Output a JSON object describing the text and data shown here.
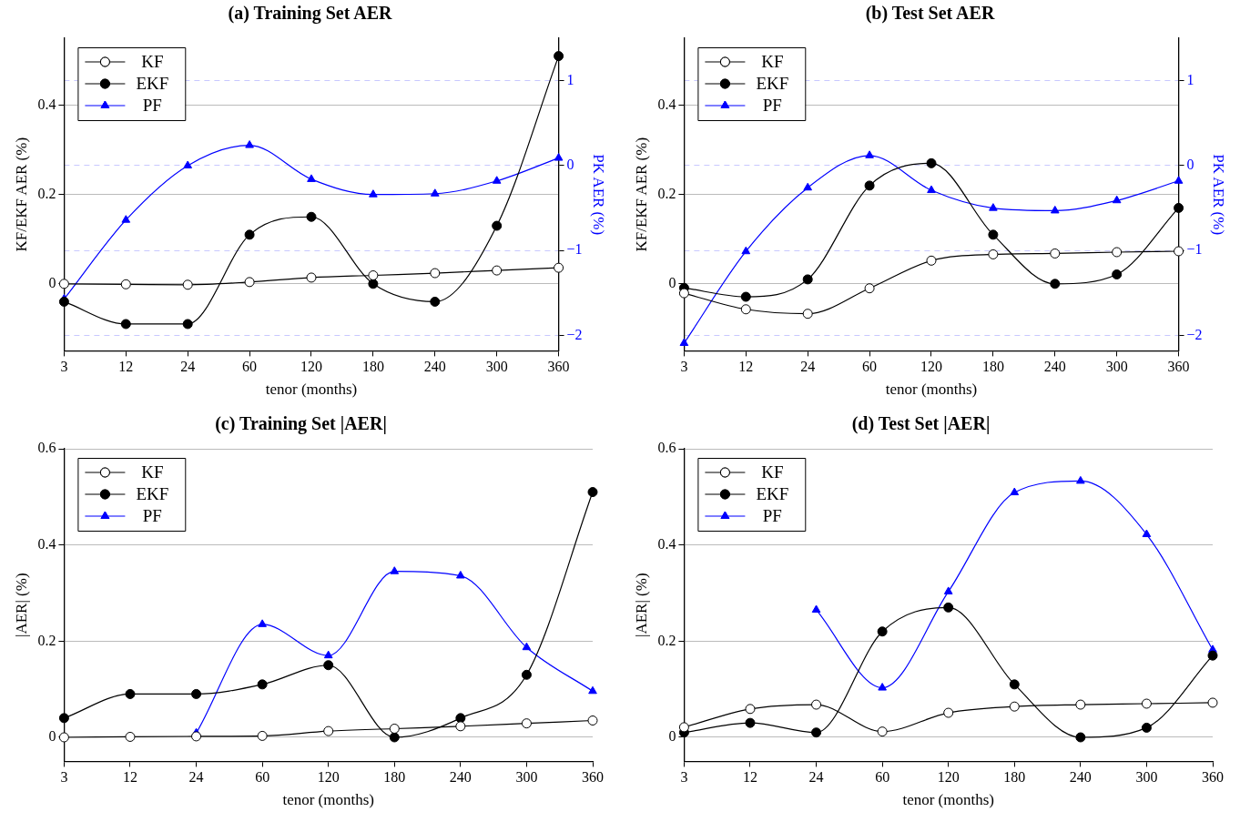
{
  "chart_data": [
    {
      "type": "line",
      "title": "(a) Training Set AER",
      "xlabel": "tenor (months)",
      "ylabel": "KF/EKF AER (%)",
      "y2label": "PK AER (%)",
      "categories": [
        "3",
        "12",
        "24",
        "60",
        "120",
        "180",
        "240",
        "300",
        "360"
      ],
      "series": [
        {
          "name": "KF",
          "color": "#000000",
          "marker": "circle",
          "values": [
            0,
            -0.001,
            -0.002,
            0.004,
            0.014,
            0.019,
            0.024,
            0.03,
            0.036
          ]
        },
        {
          "name": "EKF",
          "color": "#000000",
          "marker": "circle",
          "values": [
            -0.04,
            -0.09,
            -0.09,
            0.11,
            0.15,
            0,
            -0.04,
            0.13,
            0.51
          ]
        },
        {
          "name": "PF",
          "color": "#0000ff",
          "marker": "triangle",
          "axis": "y2",
          "values": [
            -1.57,
            -0.64,
            0,
            0.24,
            -0.16,
            -0.34,
            -0.33,
            -0.18,
            0.09
          ]
        }
      ],
      "ylim": [
        -0.15,
        0.55
      ],
      "yticks": [
        0,
        0.2,
        0.4
      ],
      "y2lim": [
        -2.18,
        1.5
      ],
      "y2ticks": [
        -2,
        -1,
        0,
        1
      ],
      "grid": "y",
      "legend": "top left"
    },
    {
      "type": "line",
      "title": "(b) Test Set AER",
      "xlabel": "tenor (months)",
      "ylabel": "KF/EKF AER (%)",
      "y2label": "PK AER (%)",
      "categories": [
        "3",
        "12",
        "24",
        "60",
        "120",
        "180",
        "240",
        "300",
        "360"
      ],
      "series": [
        {
          "name": "KF",
          "color": "#000000",
          "marker": "circle",
          "values": [
            -0.021,
            -0.057,
            -0.067,
            -0.01,
            0.052,
            0.066,
            0.068,
            0.071,
            0.073
          ]
        },
        {
          "name": "EKF",
          "color": "#000000",
          "marker": "circle",
          "values": [
            -0.009,
            -0.029,
            0.01,
            0.22,
            0.27,
            0.11,
            0,
            0.021,
            0.17
          ]
        },
        {
          "name": "PF",
          "color": "#0000ff",
          "marker": "triangle",
          "axis": "y2",
          "values": [
            -2.09,
            -1.01,
            -0.26,
            0.12,
            -0.29,
            -0.5,
            -0.53,
            -0.41,
            -0.18
          ]
        }
      ],
      "ylim": [
        -0.15,
        0.55
      ],
      "yticks": [
        0,
        0.2,
        0.4
      ],
      "y2lim": [
        -2.18,
        1.5
      ],
      "y2ticks": [
        -2,
        -1,
        0,
        1
      ],
      "grid": "y",
      "legend": "top left"
    },
    {
      "type": "line",
      "title": "(c) Training Set |AER|",
      "xlabel": "tenor (months)",
      "ylabel": "|AER| (%)",
      "categories": [
        "3",
        "12",
        "24",
        "60",
        "120",
        "180",
        "240",
        "300",
        "360"
      ],
      "series": [
        {
          "name": "KF",
          "color": "#000000",
          "marker": "circle",
          "values": [
            0,
            0.001,
            0.002,
            0.003,
            0.013,
            0.018,
            0.023,
            0.029,
            0.035
          ]
        },
        {
          "name": "EKF",
          "color": "#000000",
          "marker": "circle",
          "values": [
            0.04,
            0.09,
            0.09,
            0.11,
            0.15,
            0,
            0.04,
            0.13,
            0.51
          ]
        },
        {
          "name": "PF",
          "color": "#0000ff",
          "marker": "triangle",
          "values": [
            null,
            null,
            0.009,
            0.235,
            0.17,
            0.345,
            0.336,
            0.187,
            0.096
          ]
        }
      ],
      "ylim": [
        -0.05,
        0.6
      ],
      "yticks": [
        0,
        0.2,
        0.4,
        0.6
      ],
      "grid": "y",
      "legend": "top left"
    },
    {
      "type": "line",
      "title": "(d) Test Set |AER|",
      "xlabel": "tenor (months)",
      "ylabel": "|AER| (%)",
      "categories": [
        "3",
        "12",
        "24",
        "60",
        "120",
        "180",
        "240",
        "300",
        "360"
      ],
      "series": [
        {
          "name": "KF",
          "color": "#000000",
          "marker": "circle",
          "values": [
            0.021,
            0.059,
            0.068,
            0.012,
            0.051,
            0.064,
            0.068,
            0.07,
            0.072
          ]
        },
        {
          "name": "EKF",
          "color": "#000000",
          "marker": "circle",
          "values": [
            0.01,
            0.03,
            0.01,
            0.22,
            0.27,
            0.11,
            0,
            0.02,
            0.17
          ]
        },
        {
          "name": "PF",
          "color": "#0000ff",
          "marker": "triangle",
          "values": [
            null,
            null,
            0.265,
            0.103,
            0.303,
            0.509,
            0.533,
            0.422,
            0.182
          ]
        }
      ],
      "ylim": [
        -0.05,
        0.6
      ],
      "yticks": [
        0,
        0.2,
        0.4,
        0.6
      ],
      "grid": "y",
      "legend": "top left"
    }
  ]
}
